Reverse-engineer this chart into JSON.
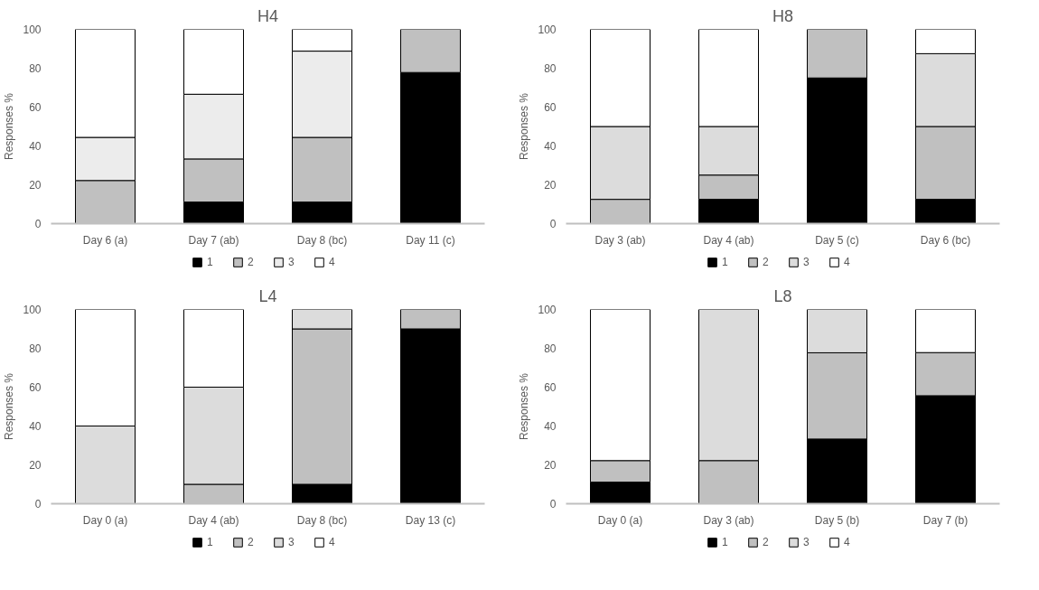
{
  "chart_data": [
    {
      "type": "bar",
      "title": "H4",
      "ylabel": "Responses %",
      "stacked": true,
      "legend": "bottom",
      "ylim": [
        0,
        100
      ],
      "yticks": [
        0,
        20,
        40,
        60,
        80,
        100
      ],
      "categories": [
        "Day 6 (a)",
        "Day 7 (ab)",
        "Day 8 (bc)",
        "Day 11 (c)"
      ],
      "series": [
        {
          "name": "1",
          "color": "#000000",
          "values": [
            0,
            11.1,
            11.1,
            77.8
          ]
        },
        {
          "name": "2",
          "color": "#c0c0c0",
          "values": [
            22.2,
            22.2,
            33.3,
            22.2
          ]
        },
        {
          "name": "3",
          "color": "#ececec",
          "values": [
            22.2,
            33.3,
            44.4,
            0
          ]
        },
        {
          "name": "4",
          "color": "#ffffff",
          "values": [
            55.6,
            33.4,
            11.2,
            0
          ]
        }
      ]
    },
    {
      "type": "bar",
      "title": "H8",
      "ylabel": "Responses %",
      "stacked": true,
      "legend": "bottom",
      "ylim": [
        0,
        100
      ],
      "yticks": [
        0,
        20,
        40,
        60,
        80,
        100
      ],
      "categories": [
        "Day 3 (ab)",
        "Day 4 (ab)",
        "Day 5 (c)",
        "Day 6 (bc)"
      ],
      "series": [
        {
          "name": "1",
          "color": "#000000",
          "values": [
            0,
            12.5,
            75,
            12.5
          ]
        },
        {
          "name": "2",
          "color": "#c0c0c0",
          "values": [
            12.5,
            12.5,
            25,
            37.5
          ]
        },
        {
          "name": "3",
          "color": "#dcdcdc",
          "values": [
            37.5,
            25,
            0,
            37.5
          ]
        },
        {
          "name": "4",
          "color": "#ffffff",
          "values": [
            50,
            50,
            0,
            12.5
          ]
        }
      ]
    },
    {
      "type": "bar",
      "title": "L4",
      "ylabel": "Responses %",
      "stacked": true,
      "legend": "bottom",
      "ylim": [
        0,
        100
      ],
      "yticks": [
        0,
        20,
        40,
        60,
        80,
        100
      ],
      "categories": [
        "Day 0 (a)",
        "Day 4 (ab)",
        "Day 8 (bc)",
        "Day 13 (c)"
      ],
      "series": [
        {
          "name": "1",
          "color": "#000000",
          "values": [
            0,
            0,
            10,
            90
          ]
        },
        {
          "name": "2",
          "color": "#c0c0c0",
          "values": [
            0,
            10,
            80,
            10
          ]
        },
        {
          "name": "3",
          "color": "#dcdcdc",
          "values": [
            40,
            50,
            10,
            0
          ]
        },
        {
          "name": "4",
          "color": "#ffffff",
          "values": [
            60,
            40,
            0,
            0
          ]
        }
      ]
    },
    {
      "type": "bar",
      "title": "L8",
      "ylabel": "Responses %",
      "stacked": true,
      "legend": "bottom",
      "ylim": [
        0,
        100
      ],
      "yticks": [
        0,
        20,
        40,
        60,
        80,
        100
      ],
      "categories": [
        "Day 0 (a)",
        "Day 3 (ab)",
        "Day 5 (b)",
        "Day 7 (b)"
      ],
      "series": [
        {
          "name": "1",
          "color": "#000000",
          "values": [
            11.1,
            0,
            33.3,
            55.6
          ]
        },
        {
          "name": "2",
          "color": "#c0c0c0",
          "values": [
            11.1,
            22.2,
            44.4,
            22.2
          ]
        },
        {
          "name": "3",
          "color": "#dcdcdc",
          "values": [
            0,
            77.8,
            22.3,
            0
          ]
        },
        {
          "name": "4",
          "color": "#ffffff",
          "values": [
            77.8,
            0,
            0,
            22.2
          ]
        }
      ]
    }
  ]
}
